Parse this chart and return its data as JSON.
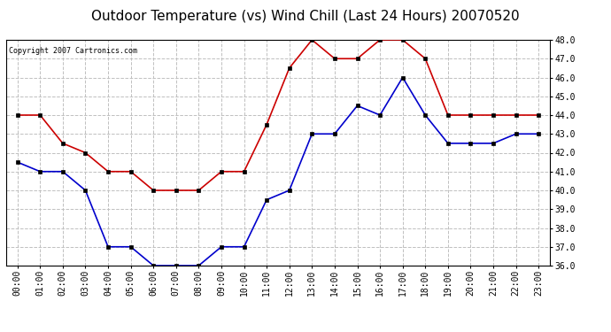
{
  "title": "Outdoor Temperature (vs) Wind Chill (Last 24 Hours) 20070520",
  "copyright_text": "Copyright 2007 Cartronics.com",
  "hours": [
    "00:00",
    "01:00",
    "02:00",
    "03:00",
    "04:00",
    "05:00",
    "06:00",
    "07:00",
    "08:00",
    "09:00",
    "10:00",
    "11:00",
    "12:00",
    "13:00",
    "14:00",
    "15:00",
    "16:00",
    "17:00",
    "18:00",
    "19:00",
    "20:00",
    "21:00",
    "22:00",
    "23:00"
  ],
  "outdoor_temp": [
    44.0,
    44.0,
    42.5,
    42.0,
    41.0,
    41.0,
    40.0,
    40.0,
    40.0,
    41.0,
    41.0,
    43.5,
    46.5,
    48.0,
    47.0,
    47.0,
    48.0,
    48.0,
    47.0,
    44.0,
    44.0,
    44.0,
    44.0,
    44.0
  ],
  "wind_chill": [
    41.5,
    41.0,
    41.0,
    40.0,
    37.0,
    37.0,
    36.0,
    36.0,
    36.0,
    37.0,
    37.0,
    39.5,
    40.0,
    43.0,
    43.0,
    44.5,
    44.0,
    46.0,
    44.0,
    42.5,
    42.5,
    42.5,
    43.0,
    43.0
  ],
  "temp_color": "#cc0000",
  "wind_color": "#0000cc",
  "ylim_min": 36.0,
  "ylim_max": 48.0,
  "background_color": "#ffffff",
  "grid_color": "#c0c0c0",
  "title_fontsize": 11,
  "copyright_fontsize": 6,
  "tick_fontsize": 7,
  "ytick_fontsize": 7,
  "marker_size": 3,
  "line_width": 1.2,
  "yticks": [
    36.0,
    37.0,
    38.0,
    39.0,
    40.0,
    41.0,
    42.0,
    43.0,
    44.0,
    45.0,
    46.0,
    47.0,
    48.0
  ]
}
